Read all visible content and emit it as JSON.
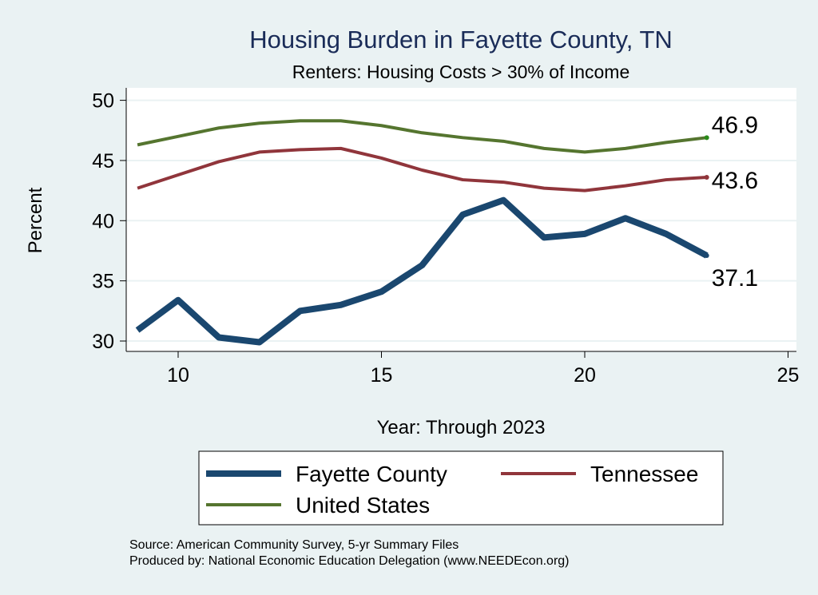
{
  "chart_data": {
    "type": "line",
    "title": "Housing Burden in Fayette County, TN",
    "subtitle": "Renters: Housing Costs > 30% of Income",
    "xlabel": "Year: Through 2023",
    "ylabel": "Percent",
    "xlim": [
      8.7,
      25.2
    ],
    "ylim": [
      29,
      50.5
    ],
    "xticks": [
      10,
      15,
      20,
      25
    ],
    "yticks": [
      30,
      35,
      40,
      45,
      50
    ],
    "grid": true,
    "x": [
      9,
      10,
      11,
      12,
      13,
      14,
      15,
      16,
      17,
      18,
      19,
      20,
      21,
      22,
      23
    ],
    "series": [
      {
        "name": "Fayette County",
        "color": "#1a476f",
        "values": [
          30.9,
          33.4,
          30.3,
          29.9,
          32.5,
          33.0,
          34.1,
          36.3,
          40.5,
          41.7,
          38.6,
          38.9,
          40.2,
          38.9,
          37.1
        ],
        "end_label": "37.1"
      },
      {
        "name": "Tennessee",
        "color": "#90353b",
        "values": [
          42.7,
          43.8,
          44.9,
          45.7,
          45.9,
          46.0,
          45.2,
          44.2,
          43.4,
          43.2,
          42.7,
          42.5,
          42.9,
          43.4,
          43.6
        ],
        "end_label": "43.6"
      },
      {
        "name": "United States",
        "color": "#55752f",
        "values": [
          46.3,
          47.0,
          47.7,
          48.1,
          48.3,
          48.3,
          47.9,
          47.3,
          46.9,
          46.6,
          46.0,
          45.7,
          46.0,
          46.5,
          46.9
        ],
        "end_label": "46.9"
      }
    ],
    "legend_position": "bottom",
    "notes": [
      "Source: American Community Survey, 5-yr Summary Files",
      "Produced by: National Economic Education Delegation (www.NEEDEcon.org)"
    ]
  }
}
